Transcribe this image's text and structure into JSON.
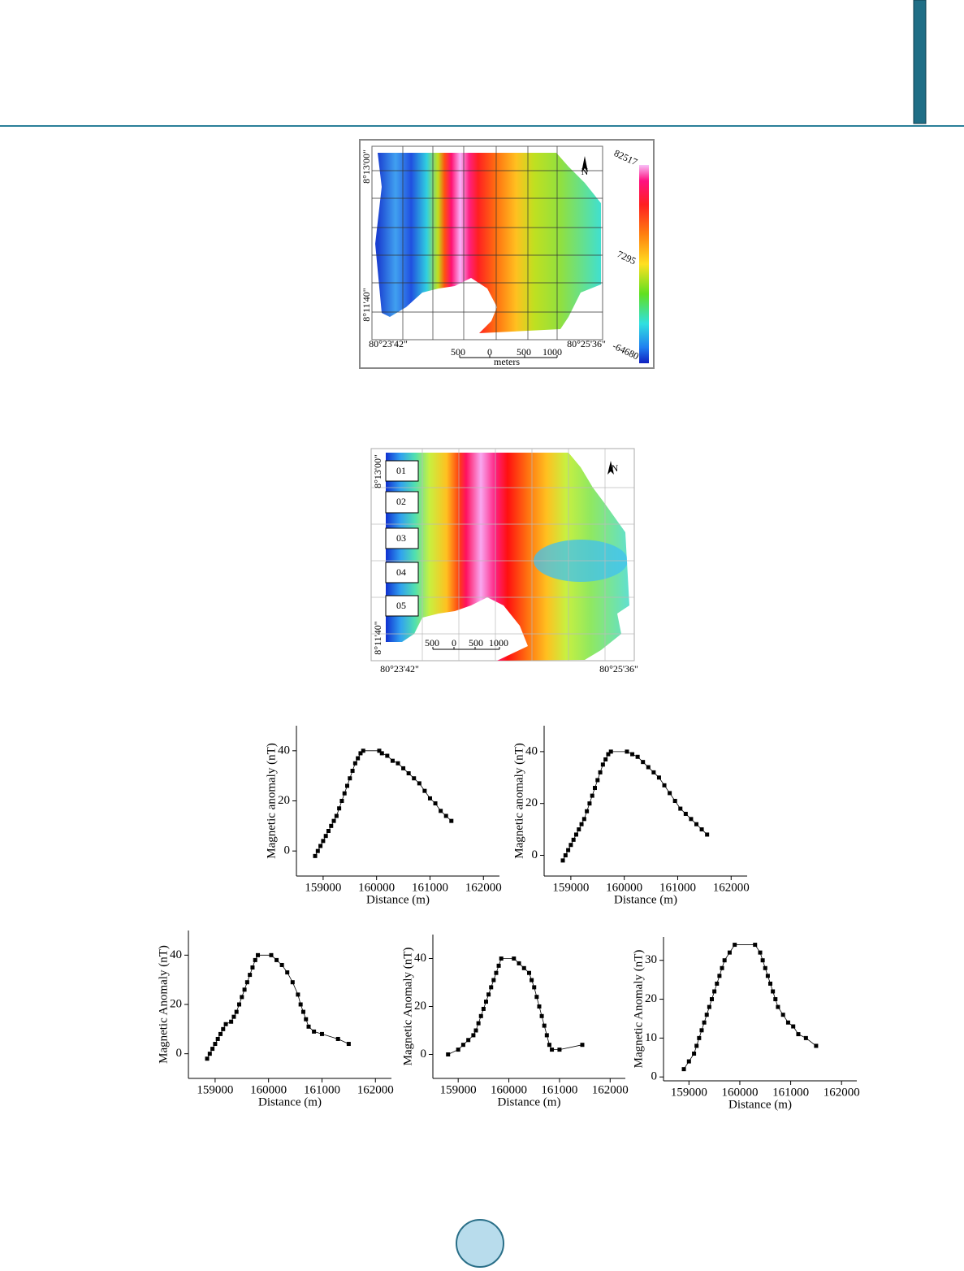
{
  "maps": [
    {
      "lat_labels": [
        "8°13'00\"",
        "8°11'40\""
      ],
      "lon_labels": [
        "80°23'42\"",
        "80°25'36\""
      ],
      "north": "N",
      "scale_labels": [
        500,
        0,
        500,
        1000
      ],
      "scale_unit": "meters",
      "colorbar_labels": [
        82517,
        7295,
        -64680
      ]
    },
    {
      "lat_labels": [
        "8°13'00\"",
        "8°11'40\""
      ],
      "lon_labels": [
        "80°23'42\"",
        "80°25'36\""
      ],
      "north": "N",
      "scale_labels": [
        500,
        0,
        500,
        1000
      ],
      "profile_labels": [
        "01",
        "02",
        "03",
        "04",
        "05"
      ]
    }
  ],
  "chart_data": [
    {
      "type": "line",
      "color": "#000000",
      "marker": "square",
      "xlabel": "Distance (m)",
      "ylabel": "Magnetic anomaly (nT)",
      "xlim": [
        158500,
        162300
      ],
      "ylim": [
        -10,
        50
      ],
      "xticks": [
        159000,
        160000,
        161000,
        162000
      ],
      "yticks": [
        0,
        20,
        40
      ],
      "x": [
        158850,
        158900,
        158950,
        159000,
        159050,
        159100,
        159150,
        159200,
        159250,
        159300,
        159350,
        159400,
        159450,
        159500,
        159550,
        159600,
        159650,
        159700,
        159750,
        160050,
        160100,
        160200,
        160300,
        160400,
        160500,
        160600,
        160700,
        160800,
        160900,
        161000,
        161100,
        161200,
        161300,
        161400
      ],
      "values": [
        -2,
        0,
        2,
        4,
        6,
        8,
        10,
        12,
        14,
        17,
        20,
        23,
        26,
        29,
        32,
        35,
        37,
        39,
        40,
        40,
        39,
        38,
        36,
        35,
        33,
        31,
        29,
        27,
        24,
        21,
        19,
        16,
        14,
        12
      ]
    },
    {
      "type": "line",
      "color": "#000000",
      "marker": "square",
      "xlabel": "Distance (m)",
      "ylabel": "Magnetic anomaly (nT)",
      "xlim": [
        158500,
        162300
      ],
      "ylim": [
        -8,
        50
      ],
      "xticks": [
        159000,
        160000,
        161000,
        162000
      ],
      "yticks": [
        0,
        20,
        40
      ],
      "x": [
        158850,
        158900,
        158950,
        159000,
        159050,
        159100,
        159150,
        159200,
        159250,
        159300,
        159350,
        159400,
        159450,
        159500,
        159550,
        159600,
        159650,
        159700,
        159750,
        160050,
        160150,
        160250,
        160350,
        160450,
        160550,
        160650,
        160750,
        160850,
        160950,
        161050,
        161150,
        161250,
        161350,
        161450,
        161550
      ],
      "values": [
        -2,
        0,
        2,
        4,
        6,
        8,
        10,
        12,
        14,
        17,
        20,
        23,
        26,
        29,
        32,
        35,
        37,
        39,
        40,
        40,
        39,
        38,
        36,
        34,
        32,
        30,
        27,
        24,
        21,
        18,
        16,
        14,
        12,
        10,
        8
      ]
    },
    {
      "type": "line",
      "color": "#000000",
      "marker": "square",
      "xlabel": "Distance (m)",
      "ylabel": "Magnetic Anomaly (nT)",
      "xlim": [
        158500,
        162300
      ],
      "ylim": [
        -10,
        50
      ],
      "xticks": [
        159000,
        160000,
        161000,
        162000
      ],
      "yticks": [
        0,
        20,
        40
      ],
      "x": [
        158850,
        158900,
        158950,
        159000,
        159050,
        159100,
        159150,
        159200,
        159300,
        159350,
        159400,
        159450,
        159500,
        159550,
        159600,
        159650,
        159700,
        159750,
        159800,
        160050,
        160150,
        160250,
        160350,
        160450,
        160550,
        160600,
        160650,
        160700,
        160750,
        160850,
        161000,
        161300,
        161500
      ],
      "values": [
        -2,
        0,
        2,
        4,
        6,
        8,
        10,
        12,
        13,
        15,
        17,
        20,
        23,
        26,
        29,
        32,
        35,
        38,
        40,
        40,
        38,
        36,
        33,
        29,
        24,
        20,
        17,
        14,
        11,
        9,
        8,
        6,
        4
      ]
    },
    {
      "type": "line",
      "color": "#000000",
      "marker": "square",
      "xlabel": "Distance (m)",
      "ylabel": "Magnetic Anomaly (nT)",
      "xlim": [
        158500,
        162300
      ],
      "ylim": [
        -10,
        50
      ],
      "xticks": [
        159000,
        160000,
        161000,
        162000
      ],
      "yticks": [
        0,
        20,
        40
      ],
      "x": [
        158800,
        159000,
        159100,
        159200,
        159300,
        159350,
        159400,
        159450,
        159500,
        159550,
        159600,
        159650,
        159700,
        159750,
        159800,
        159850,
        160100,
        160200,
        160300,
        160400,
        160450,
        160500,
        160550,
        160600,
        160650,
        160700,
        160750,
        160800,
        160850,
        161000,
        161450
      ],
      "values": [
        0,
        2,
        4,
        6,
        8,
        10,
        13,
        16,
        19,
        22,
        25,
        28,
        31,
        34,
        37,
        40,
        40,
        38,
        36,
        34,
        31,
        28,
        24,
        20,
        16,
        12,
        8,
        4,
        2,
        2,
        4
      ]
    },
    {
      "type": "line",
      "color": "#000000",
      "marker": "square",
      "xlabel": "Distance (m)",
      "ylabel": "Magnetic Anomaly (nT)",
      "xlim": [
        158500,
        162300
      ],
      "ylim": [
        -1,
        36
      ],
      "xticks": [
        159000,
        160000,
        161000,
        162000
      ],
      "yticks": [
        0,
        10,
        20,
        30
      ],
      "x": [
        158900,
        159000,
        159100,
        159150,
        159200,
        159250,
        159300,
        159350,
        159400,
        159450,
        159500,
        159550,
        159600,
        159650,
        159700,
        159800,
        159900,
        160300,
        160400,
        160450,
        160500,
        160550,
        160600,
        160650,
        160700,
        160750,
        160850,
        160950,
        161050,
        161150,
        161300,
        161500
      ],
      "values": [
        2,
        4,
        6,
        8,
        10,
        12,
        14,
        16,
        18,
        20,
        22,
        24,
        26,
        28,
        30,
        32,
        34,
        34,
        32,
        30,
        28,
        26,
        24,
        22,
        20,
        18,
        16,
        14,
        13,
        11,
        10,
        8
      ]
    }
  ]
}
